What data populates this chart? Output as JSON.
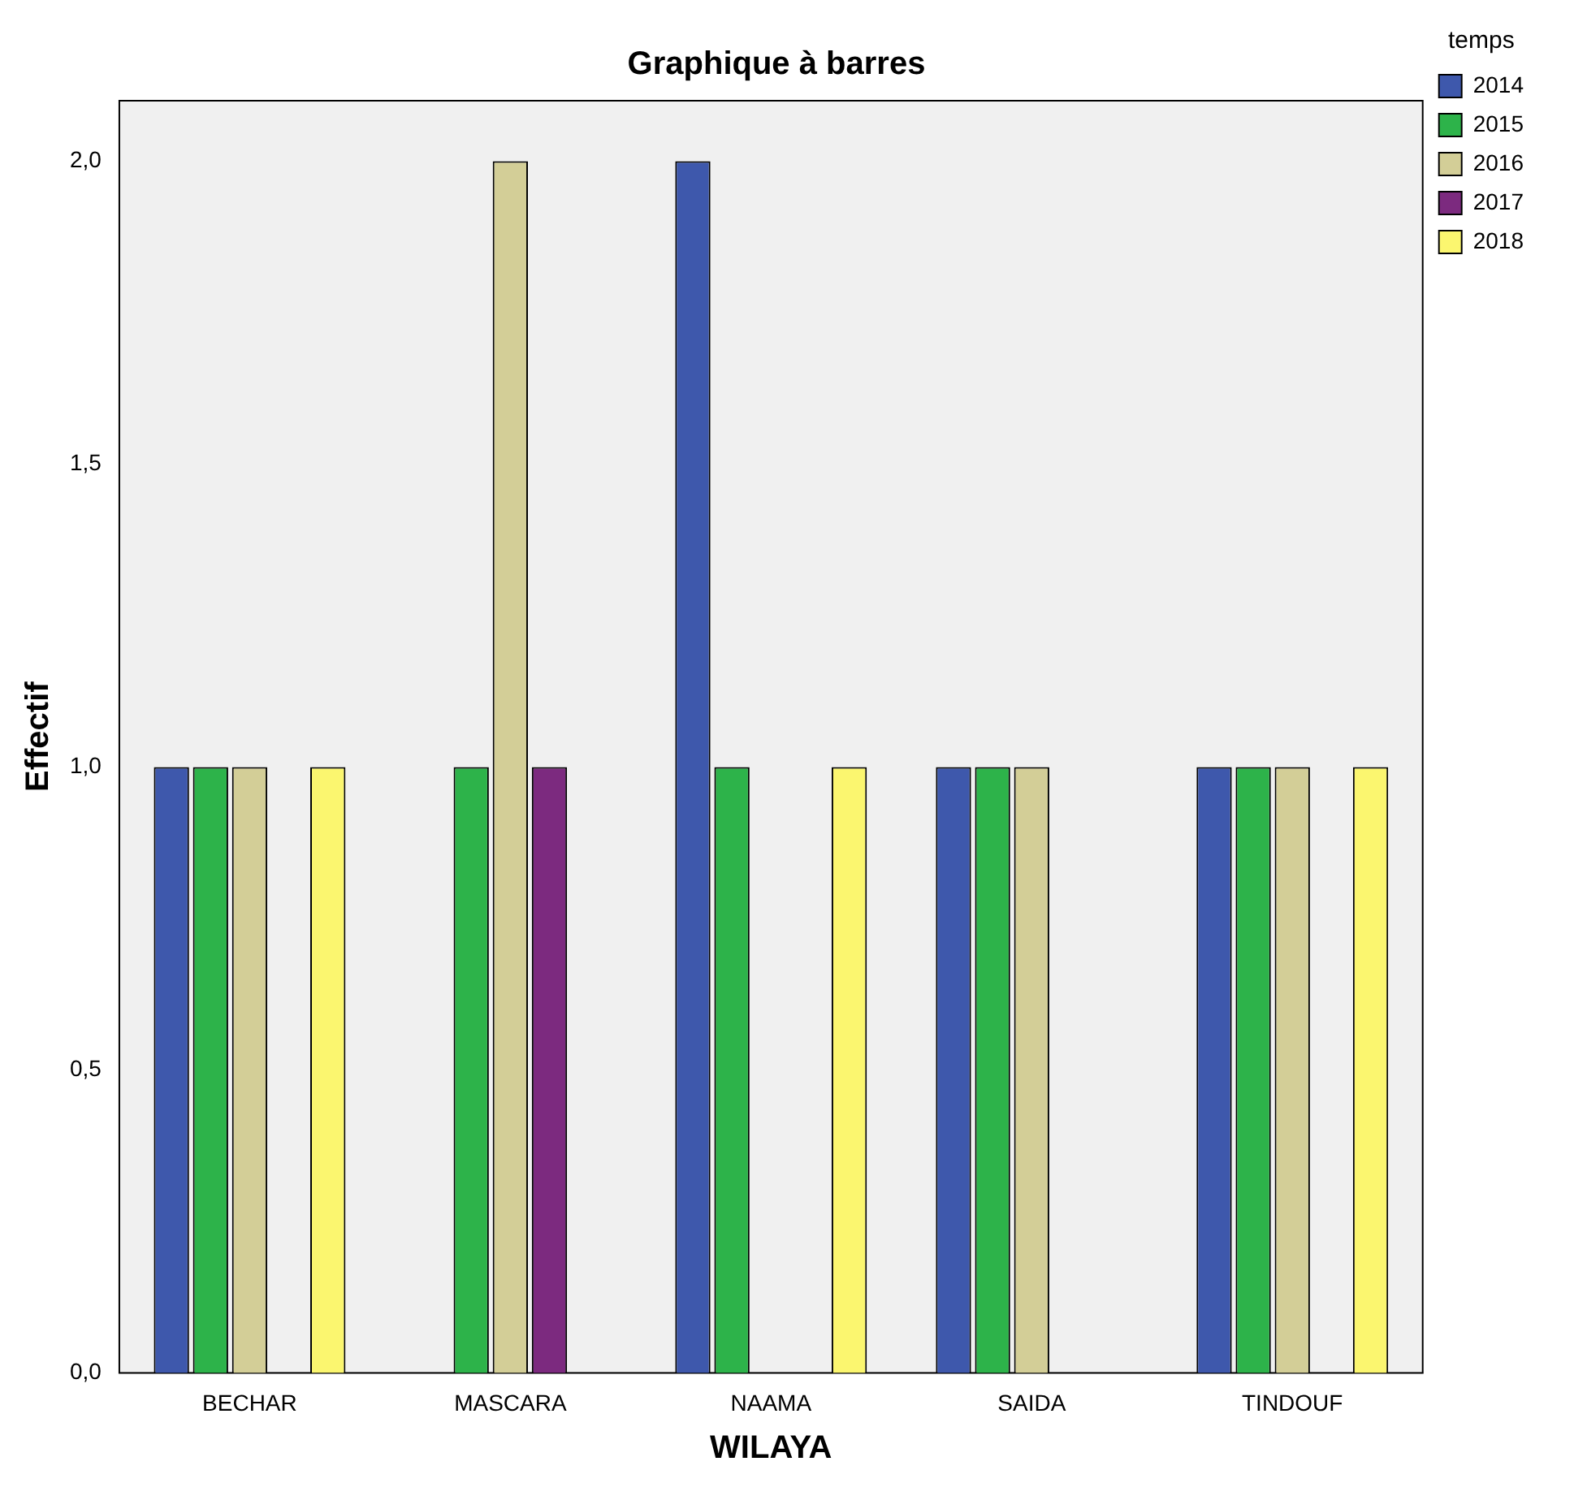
{
  "chart_data": {
    "type": "bar",
    "title": "Graphique à barres",
    "xlabel": "WILAYA",
    "ylabel": "Effectif",
    "legend_title": "temps",
    "categories": [
      "BECHAR",
      "MASCARA",
      "NAAMA",
      "SAIDA",
      "TINDOUF"
    ],
    "series": [
      {
        "name": "2014",
        "color": "#3e58ac",
        "values": [
          1,
          null,
          2,
          1,
          1
        ]
      },
      {
        "name": "2015",
        "color": "#2db34a",
        "values": [
          1,
          1,
          1,
          1,
          1
        ]
      },
      {
        "name": "2016",
        "color": "#d3ce97",
        "values": [
          1,
          2,
          null,
          1,
          1
        ]
      },
      {
        "name": "2017",
        "color": "#7c2a7f",
        "values": [
          null,
          1,
          null,
          null,
          null
        ]
      },
      {
        "name": "2018",
        "color": "#fbf66f",
        "values": [
          1,
          null,
          1,
          null,
          1
        ]
      }
    ],
    "ylim": [
      0,
      2.1
    ],
    "yticks": [
      {
        "value": 0,
        "label": "0,0"
      },
      {
        "value": 0.5,
        "label": "0,5"
      },
      {
        "value": 1,
        "label": "1,0"
      },
      {
        "value": 1.5,
        "label": "1,5"
      },
      {
        "value": 2,
        "label": "2,0"
      }
    ],
    "grid": false,
    "legend": "top right"
  }
}
